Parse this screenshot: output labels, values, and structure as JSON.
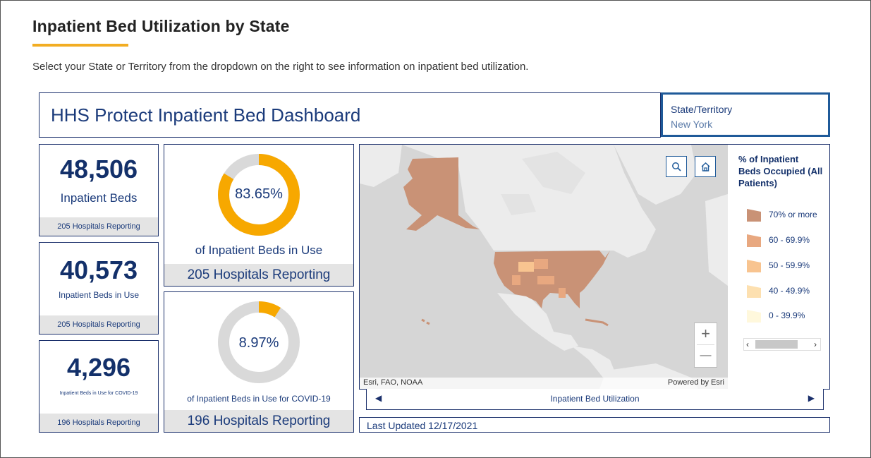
{
  "page": {
    "title": "Inpatient Bed Utilization by State",
    "subtitle": "Select your State or Territory from the dropdown on the right to see information on inpatient bed utilization.",
    "accent_color": "#f2ad22"
  },
  "dashboard": {
    "title": "HHS Protect Inpatient Bed Dashboard",
    "state_selector": {
      "label": "State/Territory",
      "value": "New York"
    }
  },
  "kpis": [
    {
      "value": "48,506",
      "label": "Inpatient Beds",
      "footer": "205 Hospitals Reporting"
    },
    {
      "value": "40,573",
      "label": "Inpatient Beds in Use",
      "footer": "205 Hospitals Reporting"
    },
    {
      "value": "4,296",
      "label": "Inpatient Beds in Use for COVID-19",
      "footer": "196 Hospitals Reporting"
    }
  ],
  "gauges": [
    {
      "percent_text": "83.65%",
      "fraction": 0.8365,
      "label": "of Inpatient Beds in Use",
      "footer": "205 Hospitals Reporting",
      "fill_color": "#f7a800"
    },
    {
      "percent_text": "8.97%",
      "fraction": 0.0897,
      "label": "of Inpatient Beds in Use for COVID-19",
      "footer": "196 Hospitals Reporting",
      "fill_color": "#f7a800"
    }
  ],
  "map": {
    "search_icon": "search-icon",
    "home_icon": "home-icon",
    "zoom_in": "+",
    "zoom_out": "—",
    "attribution": "Esri, FAO, NOAA",
    "powered_by": "Powered by Esri",
    "legend": {
      "title": "% of Inpatient Beds Occupied (All Patients)",
      "items": [
        {
          "label": "70% or more",
          "color": "#c99276"
        },
        {
          "label": "60 - 69.9%",
          "color": "#e8a880"
        },
        {
          "label": "50 - 59.9%",
          "color": "#f8c490"
        },
        {
          "label": "40 - 49.9%",
          "color": "#fde0b0"
        },
        {
          "label": "0 - 39.9%",
          "color": "#fff8dc"
        }
      ]
    }
  },
  "pager": {
    "label": "Inpatient Bed Utilization"
  },
  "last_updated": "Last Updated 12/17/2021"
}
